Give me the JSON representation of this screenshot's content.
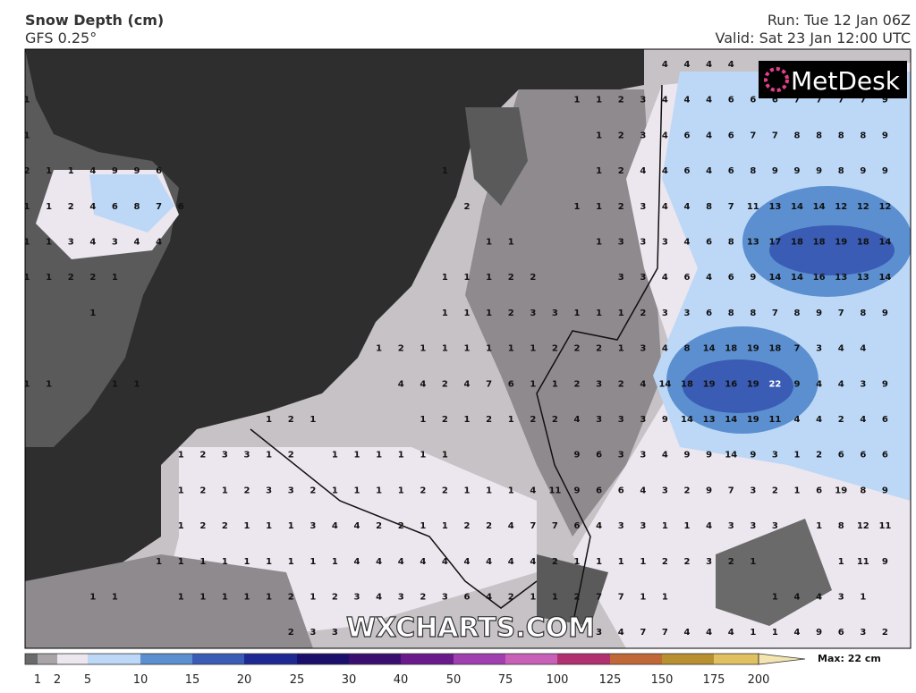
{
  "header": {
    "title": "Snow Depth (cm)",
    "subtitle": "GFS 0.25°",
    "run": "Run: Tue 12 Jan 06Z",
    "valid": "Valid: Sat 23 Jan 12:00 UTC"
  },
  "logo": "MetDesk",
  "watermark": "WXCHARTS.COM",
  "map": {
    "grid": [
      [
        null,
        null,
        null,
        null,
        null,
        null,
        null,
        null,
        null,
        null,
        null,
        null,
        null,
        null,
        null,
        null,
        null,
        null,
        null,
        null,
        null,
        null,
        null,
        null,
        null,
        null,
        null,
        null,
        null,
        4,
        4,
        4,
        4,
        null,
        null,
        null,
        null,
        null,
        null,
        null
      ],
      [
        1,
        null,
        null,
        null,
        null,
        null,
        null,
        null,
        null,
        null,
        null,
        null,
        null,
        null,
        null,
        null,
        null,
        null,
        null,
        null,
        null,
        null,
        null,
        null,
        null,
        1,
        1,
        2,
        3,
        4,
        4,
        4,
        6,
        6,
        6,
        7,
        7,
        7,
        7,
        9
      ],
      [
        1,
        null,
        null,
        null,
        null,
        null,
        null,
        null,
        null,
        null,
        null,
        null,
        null,
        null,
        null,
        null,
        null,
        null,
        null,
        null,
        null,
        null,
        null,
        null,
        null,
        null,
        1,
        2,
        3,
        4,
        6,
        4,
        6,
        7,
        7,
        8,
        8,
        8,
        8,
        9
      ],
      [
        2,
        1,
        1,
        4,
        9,
        9,
        6,
        null,
        null,
        null,
        null,
        null,
        null,
        null,
        null,
        null,
        null,
        null,
        null,
        1,
        null,
        null,
        null,
        null,
        null,
        null,
        1,
        2,
        4,
        4,
        6,
        4,
        6,
        8,
        9,
        9,
        9,
        8,
        9,
        9
      ],
      [
        1,
        1,
        2,
        4,
        6,
        8,
        7,
        6,
        null,
        null,
        null,
        null,
        null,
        null,
        null,
        null,
        null,
        null,
        null,
        null,
        2,
        null,
        null,
        null,
        null,
        1,
        1,
        2,
        3,
        4,
        4,
        8,
        7,
        11,
        13,
        14,
        14,
        12,
        12,
        12
      ],
      [
        1,
        1,
        3,
        4,
        3,
        4,
        4,
        null,
        null,
        null,
        null,
        null,
        null,
        null,
        null,
        null,
        null,
        null,
        null,
        null,
        null,
        1,
        1,
        null,
        null,
        null,
        1,
        3,
        3,
        3,
        4,
        6,
        8,
        13,
        17,
        18,
        18,
        19,
        18,
        14
      ],
      [
        1,
        1,
        2,
        2,
        1,
        null,
        null,
        null,
        null,
        null,
        null,
        null,
        null,
        null,
        null,
        null,
        null,
        null,
        null,
        1,
        1,
        1,
        2,
        2,
        null,
        null,
        null,
        3,
        3,
        4,
        6,
        4,
        6,
        9,
        14,
        14,
        16,
        13,
        13,
        14
      ],
      [
        null,
        null,
        null,
        1,
        null,
        null,
        null,
        null,
        null,
        null,
        null,
        null,
        null,
        null,
        null,
        null,
        null,
        null,
        null,
        1,
        1,
        1,
        2,
        3,
        3,
        1,
        1,
        1,
        2,
        3,
        3,
        6,
        8,
        8,
        7,
        8,
        9,
        7,
        8,
        9
      ],
      [
        null,
        null,
        null,
        null,
        null,
        null,
        null,
        null,
        null,
        null,
        null,
        null,
        null,
        null,
        null,
        null,
        1,
        2,
        1,
        1,
        1,
        1,
        1,
        1,
        2,
        2,
        2,
        1,
        3,
        4,
        8,
        14,
        18,
        19,
        18,
        7,
        3,
        4,
        4,
        null
      ],
      [
        1,
        1,
        null,
        null,
        1,
        1,
        null,
        null,
        null,
        null,
        null,
        null,
        null,
        null,
        null,
        null,
        null,
        4,
        4,
        2,
        4,
        7,
        6,
        1,
        1,
        2,
        3,
        2,
        4,
        14,
        18,
        19,
        16,
        19,
        22,
        9,
        4,
        4,
        3,
        9
      ],
      [
        null,
        null,
        null,
        null,
        null,
        null,
        null,
        null,
        null,
        null,
        null,
        1,
        2,
        1,
        null,
        null,
        null,
        null,
        1,
        2,
        1,
        2,
        1,
        2,
        2,
        4,
        3,
        3,
        3,
        9,
        14,
        13,
        14,
        19,
        11,
        4,
        4,
        2,
        4,
        6
      ],
      [
        null,
        null,
        null,
        null,
        null,
        null,
        null,
        1,
        2,
        3,
        3,
        1,
        2,
        null,
        1,
        1,
        1,
        1,
        1,
        1,
        null,
        null,
        null,
        null,
        null,
        9,
        6,
        3,
        3,
        4,
        9,
        9,
        14,
        9,
        3,
        1,
        2,
        6,
        6,
        6
      ],
      [
        null,
        null,
        null,
        null,
        null,
        null,
        null,
        1,
        2,
        1,
        2,
        3,
        3,
        2,
        1,
        1,
        1,
        1,
        2,
        2,
        1,
        1,
        1,
        4,
        11,
        9,
        6,
        6,
        4,
        3,
        2,
        9,
        7,
        3,
        2,
        1,
        6,
        19,
        8,
        9
      ],
      [
        null,
        null,
        null,
        null,
        null,
        null,
        null,
        1,
        2,
        2,
        1,
        1,
        1,
        3,
        4,
        4,
        2,
        2,
        1,
        1,
        2,
        2,
        4,
        7,
        7,
        6,
        4,
        3,
        3,
        1,
        1,
        4,
        3,
        3,
        3,
        null,
        1,
        8,
        12,
        11
      ],
      [
        null,
        null,
        null,
        null,
        null,
        null,
        1,
        1,
        1,
        1,
        1,
        1,
        1,
        1,
        1,
        4,
        4,
        4,
        4,
        4,
        4,
        4,
        4,
        4,
        2,
        1,
        1,
        1,
        1,
        2,
        2,
        3,
        2,
        1,
        null,
        null,
        null,
        1,
        11,
        9
      ],
      [
        null,
        null,
        null,
        1,
        1,
        null,
        null,
        1,
        1,
        1,
        1,
        1,
        2,
        1,
        2,
        3,
        4,
        3,
        2,
        3,
        6,
        4,
        2,
        1,
        1,
        2,
        7,
        7,
        1,
        1,
        null,
        null,
        null,
        null,
        1,
        4,
        4,
        3,
        1,
        null
      ],
      [
        null,
        null,
        null,
        null,
        null,
        null,
        null,
        null,
        null,
        null,
        null,
        null,
        2,
        3,
        3,
        null,
        null,
        null,
        null,
        null,
        null,
        null,
        null,
        null,
        null,
        null,
        3,
        4,
        7,
        7,
        4,
        4,
        4,
        1,
        1,
        4,
        9,
        6,
        3,
        2
      ]
    ]
  },
  "colorbar": {
    "ticks": [
      1,
      2,
      5,
      10,
      15,
      20,
      25,
      30,
      40,
      50,
      75,
      100,
      125,
      150,
      175,
      200
    ],
    "colors": [
      "#6a6a6a",
      "#a8a4a8",
      "#ece6ee",
      "#bcd8f6",
      "#5b8fd0",
      "#3a5cb4",
      "#1e2a92",
      "#1a0f6a",
      "#3a0f70",
      "#6a1a8a",
      "#a040b0",
      "#c860b8",
      "#b03070",
      "#c06838",
      "#b89030",
      "#e0c060",
      "#f4e4b0"
    ],
    "max_label": "Max: 22 cm"
  }
}
